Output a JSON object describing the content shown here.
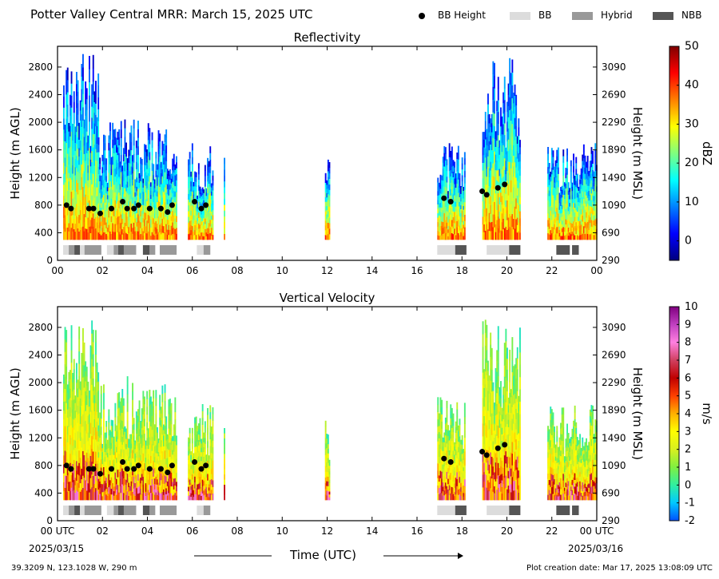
{
  "figure": {
    "title": "Potter Valley Central MRR:  March 15, 2025 UTC",
    "location": "39.3209 N, 123.1028 W, 290 m",
    "creation_date": "Plot creation date: Mar 17, 2025 13:08:09 UTC",
    "start_label": "00 UTC",
    "start_date": "2025/03/15",
    "end_label": "00 UTC",
    "end_date": "2025/03/16",
    "xlabel": "Time (UTC)"
  },
  "legend": [
    {
      "label": "BB Height",
      "marker": "dot",
      "color": "#000000"
    },
    {
      "label": "BB",
      "marker": "box",
      "color": "#dcdcdc"
    },
    {
      "label": "Hybrid",
      "marker": "box",
      "color": "#999999"
    },
    {
      "label": "NBB",
      "marker": "box",
      "color": "#555555"
    }
  ],
  "colors": {
    "bb": "#dcdcdc",
    "hybrid": "#999999",
    "nbb": "#555555",
    "bb_point": "#000000"
  },
  "chart_data": [
    {
      "type": "heatmap",
      "title": "Reflectivity",
      "ylabel": "Height (m AGL)",
      "ylabel_right": "Height (m MSL)",
      "colorbar_label": "dBZ",
      "xlim": [
        0,
        24
      ],
      "ylim": [
        0,
        3100
      ],
      "x_ticks": [
        "00",
        "02",
        "04",
        "06",
        "08",
        "10",
        "12",
        "14",
        "16",
        "18",
        "20",
        "22",
        "00"
      ],
      "y_ticks": [
        0,
        400,
        800,
        1200,
        1600,
        2000,
        2400,
        2800
      ],
      "y2_ticks": [
        290,
        690,
        1090,
        1490,
        1890,
        2290,
        2690,
        3090
      ],
      "colorbar_range": [
        -5,
        50
      ],
      "colorbar_ticks": [
        0,
        10,
        20,
        30,
        40,
        50
      ],
      "colormap": [
        "#00007f",
        "#0000ff",
        "#0080ff",
        "#00ffff",
        "#7fff7f",
        "#ffff00",
        "#ff8000",
        "#ff0000",
        "#7f0000"
      ]
    },
    {
      "type": "heatmap",
      "title": "Vertical Velocity",
      "ylabel": "Height (m AGL)",
      "ylabel_right": "Height (m MSL)",
      "colorbar_label": "m/s",
      "xlim": [
        0,
        24
      ],
      "ylim": [
        0,
        3100
      ],
      "x_ticks": [
        "00 UTC",
        "02",
        "04",
        "06",
        "08",
        "10",
        "12",
        "14",
        "16",
        "18",
        "20",
        "22",
        "00 UTC"
      ],
      "y_ticks": [
        0,
        400,
        800,
        1200,
        1600,
        2000,
        2400,
        2800
      ],
      "y2_ticks": [
        290,
        690,
        1090,
        1490,
        1890,
        2290,
        2690,
        3090
      ],
      "colorbar_range": [
        -2,
        10
      ],
      "colorbar_ticks": [
        -2,
        -1,
        0,
        1,
        2,
        3,
        4,
        5,
        6,
        7,
        8,
        9,
        10
      ],
      "colormap": [
        "#0050ff",
        "#00c8ff",
        "#30f0a0",
        "#80f040",
        "#d8f020",
        "#ffff00",
        "#ffb000",
        "#ff4000",
        "#c00000",
        "#d04060",
        "#ff80e0",
        "#c040c0",
        "#800080"
      ]
    }
  ],
  "echo_periods": [
    {
      "start": 0.25,
      "end": 1.8,
      "top": 3000,
      "base": 300
    },
    {
      "start": 1.8,
      "end": 2.8,
      "top": 2000,
      "base": 300
    },
    {
      "start": 2.8,
      "end": 3.5,
      "top": 2100,
      "base": 300
    },
    {
      "start": 3.5,
      "end": 5.3,
      "top": 2050,
      "base": 300
    },
    {
      "start": 5.8,
      "end": 6.9,
      "top": 1700,
      "base": 300
    },
    {
      "start": 7.4,
      "end": 7.45,
      "top": 1600,
      "base": 300
    },
    {
      "start": 11.9,
      "end": 12.1,
      "top": 1500,
      "base": 300
    },
    {
      "start": 16.9,
      "end": 18.1,
      "top": 1800,
      "base": 300
    },
    {
      "start": 18.9,
      "end": 20.6,
      "top": 2950,
      "base": 300
    },
    {
      "start": 21.8,
      "end": 24.0,
      "top": 1700,
      "base": 300
    }
  ],
  "bright_band_points": [
    {
      "time": 0.4,
      "height": 800
    },
    {
      "time": 0.6,
      "height": 750
    },
    {
      "time": 1.4,
      "height": 750
    },
    {
      "time": 1.6,
      "height": 750
    },
    {
      "time": 1.9,
      "height": 680
    },
    {
      "time": 2.4,
      "height": 750
    },
    {
      "time": 2.9,
      "height": 850
    },
    {
      "time": 3.1,
      "height": 750
    },
    {
      "time": 3.4,
      "height": 750
    },
    {
      "time": 3.6,
      "height": 800
    },
    {
      "time": 4.1,
      "height": 750
    },
    {
      "time": 4.6,
      "height": 750
    },
    {
      "time": 4.9,
      "height": 700
    },
    {
      "time": 5.1,
      "height": 800
    },
    {
      "time": 6.1,
      "height": 850
    },
    {
      "time": 6.4,
      "height": 750
    },
    {
      "time": 6.6,
      "height": 800
    },
    {
      "time": 17.2,
      "height": 900
    },
    {
      "time": 17.5,
      "height": 850
    },
    {
      "time": 18.9,
      "height": 1000
    },
    {
      "time": 19.1,
      "height": 950
    },
    {
      "time": 19.6,
      "height": 1050
    },
    {
      "time": 19.9,
      "height": 1100
    }
  ],
  "bright_band_types": [
    {
      "start": 0.25,
      "end": 0.5,
      "type": "bb"
    },
    {
      "start": 0.5,
      "end": 0.75,
      "type": "hybrid"
    },
    {
      "start": 0.75,
      "end": 1.0,
      "type": "nbb"
    },
    {
      "start": 1.0,
      "end": 1.2,
      "type": "bb"
    },
    {
      "start": 1.2,
      "end": 1.95,
      "type": "hybrid"
    },
    {
      "start": 2.2,
      "end": 2.5,
      "type": "bb"
    },
    {
      "start": 2.5,
      "end": 2.7,
      "type": "hybrid"
    },
    {
      "start": 2.7,
      "end": 2.95,
      "type": "nbb"
    },
    {
      "start": 2.95,
      "end": 3.5,
      "type": "hybrid"
    },
    {
      "start": 3.8,
      "end": 4.1,
      "type": "nbb"
    },
    {
      "start": 4.1,
      "end": 4.35,
      "type": "hybrid"
    },
    {
      "start": 4.55,
      "end": 5.3,
      "type": "hybrid"
    },
    {
      "start": 6.2,
      "end": 6.5,
      "type": "bb"
    },
    {
      "start": 6.5,
      "end": 6.8,
      "type": "hybrid"
    },
    {
      "start": 16.9,
      "end": 17.7,
      "type": "bb"
    },
    {
      "start": 17.7,
      "end": 18.2,
      "type": "nbb"
    },
    {
      "start": 19.1,
      "end": 20.1,
      "type": "bb"
    },
    {
      "start": 20.1,
      "end": 20.6,
      "type": "nbb"
    },
    {
      "start": 22.2,
      "end": 22.8,
      "type": "nbb"
    },
    {
      "start": 22.9,
      "end": 23.2,
      "type": "nbb"
    }
  ]
}
